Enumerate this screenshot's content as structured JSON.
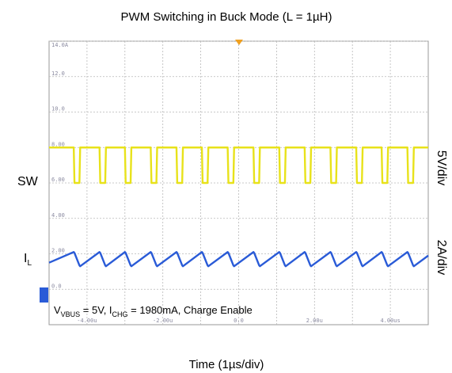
{
  "chart_data": {
    "type": "line",
    "title": "PWM Switching in Buck Mode (L = 1µH)",
    "x_label": "Time (1µs/div)",
    "trace_labels": [
      {
        "text": "SW"
      },
      {
        "text": "I",
        "sub": "L"
      }
    ],
    "scale_labels": [
      "5V/div",
      "2A/div"
    ],
    "annotation": [
      {
        "text": "V"
      },
      {
        "sub": "VBUS"
      },
      {
        "text": " = 5V, I"
      },
      {
        "sub": "CHG"
      },
      {
        "text": " = 1980mA, Charge Enable"
      }
    ],
    "xlim": [
      -5,
      5
    ],
    "ylim": [
      -2,
      14
    ],
    "xticks": [
      {
        "value": -4,
        "label": "-4.00u"
      },
      {
        "value": -2,
        "label": "-2.00u"
      },
      {
        "value": 0,
        "label": "0.0"
      },
      {
        "value": 2,
        "label": "2.00u"
      },
      {
        "value": 4,
        "label": "4.00us"
      }
    ],
    "yticks": [
      {
        "value": 14,
        "label": "14.0A"
      },
      {
        "value": 12,
        "label": "12.0"
      },
      {
        "value": 10,
        "label": "10.0"
      },
      {
        "value": 8,
        "label": "8.00"
      },
      {
        "value": 6,
        "label": "6.00"
      },
      {
        "value": 4,
        "label": "4.00"
      },
      {
        "value": 2,
        "label": "2.00"
      },
      {
        "value": 0,
        "label": "0.0"
      }
    ],
    "grid": true,
    "x": [
      -5.0,
      -4.35,
      -4.33,
      -4.2,
      -4.18,
      -3.67,
      -3.65,
      -3.52,
      -3.5,
      -3.0,
      -2.98,
      -2.85,
      -2.83,
      -2.32,
      -2.3,
      -2.17,
      -2.15,
      -1.64,
      -1.62,
      -1.49,
      -1.47,
      -0.97,
      -0.95,
      -0.82,
      -0.8,
      -0.29,
      -0.27,
      -0.14,
      -0.12,
      0.39,
      0.41,
      0.54,
      0.56,
      1.07,
      1.09,
      1.22,
      1.24,
      1.74,
      1.76,
      1.89,
      1.91,
      2.42,
      2.44,
      2.57,
      2.59,
      3.1,
      3.12,
      3.25,
      3.27,
      3.77,
      3.79,
      3.92,
      3.94,
      4.45,
      4.47,
      4.6,
      4.62,
      5.0
    ],
    "series": [
      {
        "color": "#e8e21a",
        "values": [
          8,
          8,
          6,
          6,
          8,
          8,
          6,
          6,
          8,
          8,
          6,
          6,
          8,
          8,
          6,
          6,
          8,
          8,
          6,
          6,
          8,
          8,
          6,
          6,
          8,
          8,
          6,
          6,
          8,
          8,
          6,
          6,
          8,
          8,
          6,
          6,
          8,
          8,
          6,
          6,
          8,
          8,
          6,
          6,
          8,
          8,
          6,
          6,
          8,
          8,
          6,
          6,
          8,
          8,
          6,
          6,
          8,
          8
        ]
      },
      {
        "color": "#2a5bd7",
        "values": [
          1.5,
          2.1,
          2.05,
          1.35,
          1.3,
          2.1,
          2.05,
          1.35,
          1.3,
          2.1,
          2.05,
          1.35,
          1.3,
          2.1,
          2.05,
          1.35,
          1.3,
          2.1,
          2.05,
          1.35,
          1.3,
          2.1,
          2.05,
          1.35,
          1.3,
          2.1,
          2.05,
          1.35,
          1.3,
          2.1,
          2.05,
          1.35,
          1.3,
          2.1,
          2.05,
          1.35,
          1.3,
          2.1,
          2.05,
          1.35,
          1.3,
          2.1,
          2.05,
          1.35,
          1.3,
          2.1,
          2.05,
          1.35,
          1.3,
          2.1,
          2.05,
          1.35,
          1.3,
          2.1,
          2.05,
          1.35,
          1.3,
          1.9
        ]
      }
    ]
  }
}
